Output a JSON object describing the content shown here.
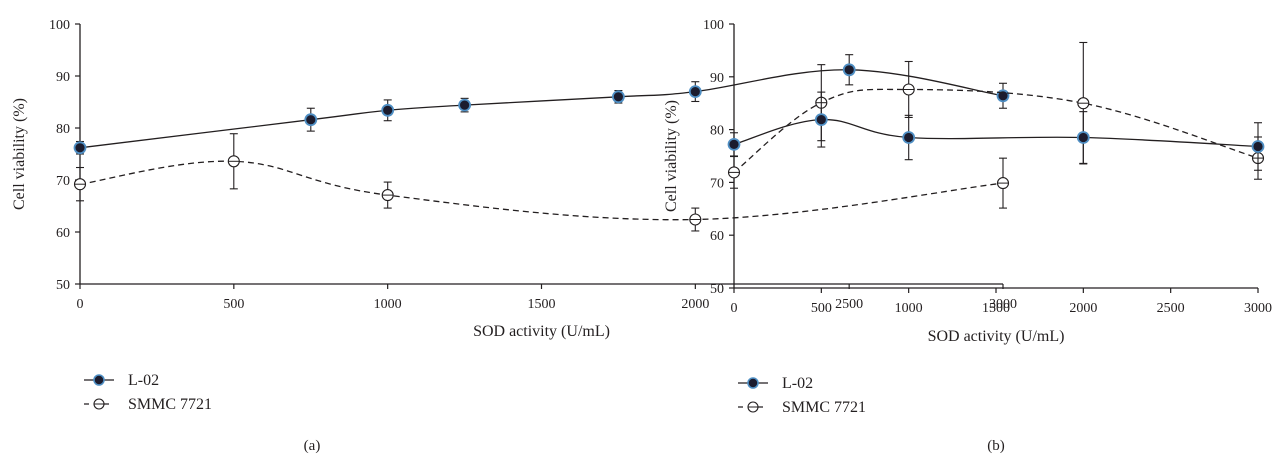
{
  "chart_data": [
    {
      "type": "line",
      "panel_label": "(a)",
      "xlabel": "SOD activity (U/mL)",
      "ylabel": "Cell viability (%)",
      "xlim": [
        0,
        3000
      ],
      "ylim": [
        50,
        100
      ],
      "xticks": [
        "0",
        "500",
        "1000",
        "1500",
        "2000",
        "2500",
        "3000"
      ],
      "yticks": [
        "50",
        "60",
        "70",
        "80",
        "90",
        "100"
      ],
      "legend_position": "bottom-left",
      "series": [
        {
          "name": "L-02",
          "style": "solid",
          "marker": "filled-circle",
          "x": [
            0,
            750,
            1000,
            1250,
            1750,
            2000,
            2500,
            3000
          ],
          "y": [
            76.2,
            81.6,
            83.4,
            84.4,
            86.0,
            87.0,
            91.2,
            86.2
          ],
          "err": [
            1.2,
            2.2,
            2.0,
            1.3,
            1.2,
            1.9,
            2.9,
            2.4
          ]
        },
        {
          "name": "SMMC 7721",
          "style": "dashed",
          "marker": "open-circle",
          "x": [
            0,
            500,
            1000,
            2000,
            3000
          ],
          "y": [
            69.2,
            73.6,
            67.1,
            62.4,
            69.4
          ],
          "err": [
            3.2,
            5.3,
            2.5,
            2.2,
            4.8
          ]
        }
      ]
    },
    {
      "type": "line",
      "panel_label": "(b)",
      "xlabel": "SOD activity (U/mL)",
      "ylabel": "Cell viability (%)",
      "xlim": [
        0,
        3000
      ],
      "ylim": [
        50,
        100
      ],
      "xticks": [
        "0",
        "500",
        "1000",
        "1500",
        "2000",
        "2500",
        "3000"
      ],
      "yticks": [
        "50",
        "60",
        "70",
        "80",
        "90",
        "100"
      ],
      "legend_position": "bottom-left",
      "series": [
        {
          "name": "L-02",
          "style": "solid",
          "marker": "filled-circle",
          "x": [
            0,
            500,
            1000,
            2000,
            3000
          ],
          "y": [
            77.2,
            81.9,
            78.5,
            78.5,
            76.8
          ],
          "err": [
            2.2,
            5.2,
            4.2,
            4.9,
            4.5
          ]
        },
        {
          "name": "SMMC 7721",
          "style": "dashed",
          "marker": "open-circle",
          "x": [
            0,
            500,
            1000,
            2000,
            3000
          ],
          "y": [
            71.9,
            85.1,
            87.6,
            85.0,
            74.6
          ],
          "err": [
            3.0,
            7.2,
            5.3,
            11.5,
            4.0
          ]
        }
      ]
    }
  ],
  "colors": {
    "axis": "#231f20",
    "marker_fill": "#1c1c2e",
    "marker_edge": "#4f8fc4",
    "open_marker_fill": "#ffffff"
  }
}
